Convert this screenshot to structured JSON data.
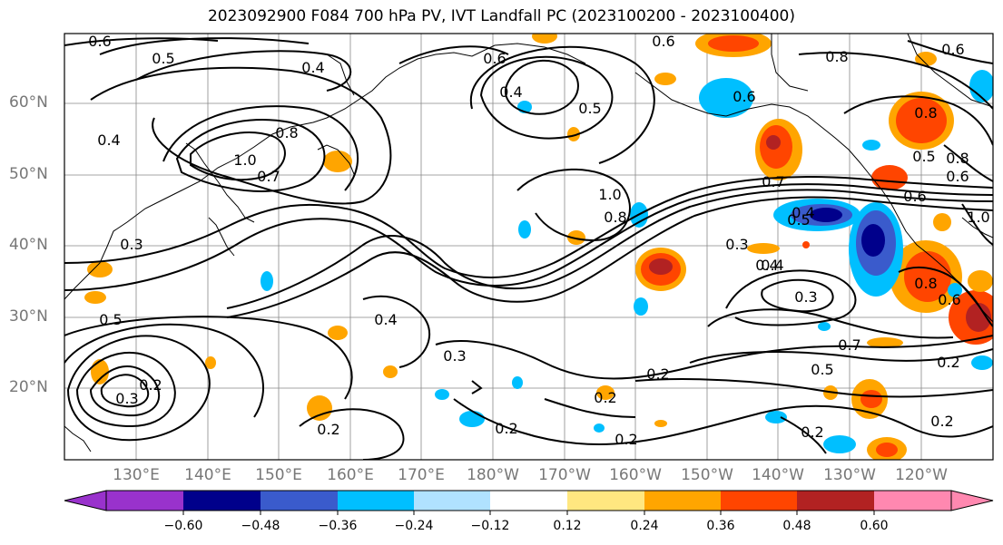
{
  "title": "2023092900 F084 700 hPa PV, IVT Landfall PC (2023100200 - 2023100400)",
  "lat_labels": [
    "60°N",
    "50°N",
    "40°N",
    "30°N",
    "20°N"
  ],
  "lon_labels": [
    "130°E",
    "140°E",
    "150°E",
    "160°E",
    "170°E",
    "180°W",
    "170°W",
    "160°W",
    "150°W",
    "140°W",
    "130°W",
    "120°W"
  ],
  "colorbar": {
    "ticks": [
      "−0.60",
      "−0.48",
      "−0.36",
      "−0.24",
      "−0.12",
      "0.12",
      "0.24",
      "0.36",
      "0.48",
      "0.60"
    ],
    "colors": [
      "#9932cc",
      "#00008b",
      "#3a5bcc",
      "#00bfff",
      "#b0e2ff",
      "#ffffff",
      "#ffe780",
      "#ffa500",
      "#ff4500",
      "#b22222",
      "#ff88b0"
    ]
  },
  "contour_labels": [
    "0.6",
    "0.5",
    "0.4",
    "0.8",
    "1.0",
    "0.7",
    "0.3",
    "0.4",
    "0.6",
    "0.4",
    "0.5",
    "0.4",
    "0.3",
    "0.5",
    "0.6",
    "0.6",
    "0.8",
    "0.6",
    "0.8",
    "0.5",
    "0.6",
    "0.7",
    "1.0",
    "0.8",
    "0.3",
    "0.4",
    "0.3",
    "0.4",
    "0.3",
    "0.7",
    "0.5",
    "0.2",
    "0.2",
    "0.2",
    "0.2",
    "0.2",
    "0.2",
    "0.2",
    "0.2",
    "0.6",
    "0.8",
    "0.2",
    "0.6",
    "0.4",
    "0.5",
    "1.0",
    "0.8"
  ]
}
